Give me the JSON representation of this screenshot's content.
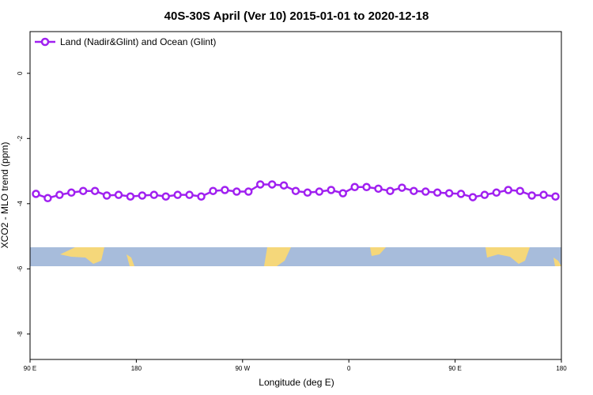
{
  "chart_data": {
    "type": "line",
    "title": "40S-30S April (Ver 10)   2015-01-01 to 2020-12-18",
    "x_label": "Longitude (deg E)",
    "y_label": "XCO2 - MLO trend (ppm)",
    "x": [
      95,
      105,
      115,
      125,
      135,
      145,
      155,
      165,
      175,
      185,
      195,
      205,
      215,
      225,
      235,
      245,
      255,
      265,
      275,
      285,
      295,
      305,
      315,
      325,
      335,
      345,
      355,
      365,
      375,
      385,
      395,
      405,
      415,
      425,
      435,
      445,
      455,
      465,
      475,
      485,
      495,
      505,
      515,
      525,
      535
    ],
    "series": [
      {
        "name": "Land (Nadir&Glint) and Ocean (Glint)",
        "color": "#a020f0",
        "values": [
          -3.7,
          -3.83,
          -3.73,
          -3.66,
          -3.61,
          -3.61,
          -3.75,
          -3.73,
          -3.78,
          -3.75,
          -3.73,
          -3.78,
          -3.73,
          -3.73,
          -3.78,
          -3.61,
          -3.58,
          -3.63,
          -3.63,
          -3.41,
          -3.41,
          -3.44,
          -3.61,
          -3.66,
          -3.63,
          -3.58,
          -3.68,
          -3.49,
          -3.49,
          -3.54,
          -3.61,
          -3.51,
          -3.61,
          -3.63,
          -3.66,
          -3.68,
          -3.7,
          -3.8,
          -3.73,
          -3.66,
          -3.58,
          -3.61,
          -3.75,
          -3.73,
          -3.78
        ]
      }
    ],
    "xlim": [
      90,
      540
    ],
    "xticks": [
      {
        "value": 90,
        "label": "90 E"
      },
      180,
      {
        "value": 270,
        "label": "90 W"
      },
      {
        "value": 360,
        "label": "0"
      },
      {
        "value": 450,
        "label": "90 E"
      },
      {
        "value": 540,
        "label": "180"
      }
    ],
    "ylim": [
      -8.78,
      1.28
    ],
    "yticks": [
      0,
      -2,
      -4,
      -6,
      -8
    ],
    "legend": "top-left"
  }
}
